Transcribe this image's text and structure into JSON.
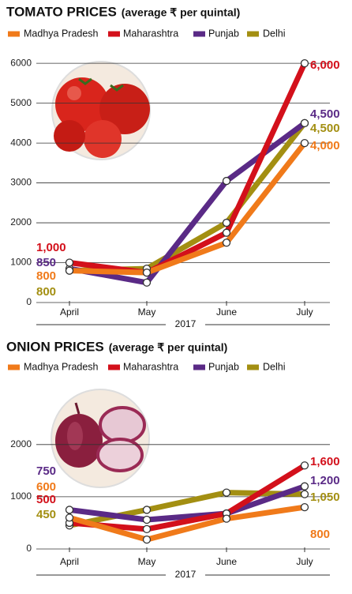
{
  "chart_data": [
    {
      "type": "line",
      "title": "TOMATO PRICES",
      "subtitle": "(average ₹ per quintal)",
      "categories": [
        "April",
        "May",
        "June",
        "July"
      ],
      "x_label": "2017",
      "ylim": [
        0,
        6300
      ],
      "yticks": [
        0,
        1000,
        2000,
        3000,
        4000,
        5000,
        6000
      ],
      "grid": true,
      "series": [
        {
          "name": "Madhya Pradesh",
          "color": "#f07a1a",
          "values": [
            800,
            750,
            1500,
            4000
          ],
          "value_labels": [
            "800",
            null,
            null,
            "4,000"
          ]
        },
        {
          "name": "Maharashtra",
          "color": "#d3101b",
          "values": [
            1000,
            750,
            1750,
            6000
          ],
          "value_labels": [
            "1,000",
            null,
            null,
            "6,000"
          ]
        },
        {
          "name": "Punjab",
          "color": "#5a2a86",
          "values": [
            850,
            500,
            3050,
            4500
          ],
          "value_labels": [
            "850",
            null,
            null,
            "4,500"
          ]
        },
        {
          "name": "Delhi",
          "color": "#a38f12",
          "values": [
            800,
            850,
            2000,
            4500
          ],
          "value_labels": [
            "800",
            null,
            null,
            "4,500"
          ]
        }
      ]
    },
    {
      "type": "line",
      "title": "ONION PRICES",
      "subtitle": "(average ₹ per quintal)",
      "categories": [
        "April",
        "May",
        "June",
        "July"
      ],
      "x_label": "2017",
      "ylim": [
        0,
        2950
      ],
      "yticks": [
        0,
        1000,
        2000
      ],
      "grid": true,
      "series": [
        {
          "name": "Madhya Pradesh",
          "color": "#f07a1a",
          "values": [
            600,
            180,
            580,
            800
          ],
          "value_labels": [
            "600",
            null,
            null,
            "800"
          ]
        },
        {
          "name": "Maharashtra",
          "color": "#d3101b",
          "values": [
            500,
            380,
            680,
            1600
          ],
          "value_labels": [
            "500",
            null,
            null,
            "1,600"
          ]
        },
        {
          "name": "Punjab",
          "color": "#5a2a86",
          "values": [
            750,
            560,
            680,
            1200
          ],
          "value_labels": [
            "750",
            null,
            null,
            "1,200"
          ]
        },
        {
          "name": "Delhi",
          "color": "#a38f12",
          "values": [
            450,
            750,
            1080,
            1050
          ],
          "value_labels": [
            "450",
            null,
            null,
            "1,050"
          ]
        }
      ]
    }
  ]
}
